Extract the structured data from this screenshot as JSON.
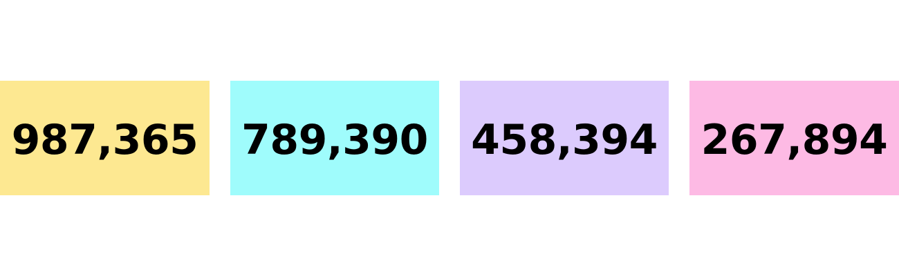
{
  "cards": [
    {
      "value": "987,365",
      "color": "#fde891"
    },
    {
      "value": "789,390",
      "color": "#9ffcfc"
    },
    {
      "value": "458,394",
      "color": "#dccbfd"
    },
    {
      "value": "267,894",
      "color": "#fdbae4"
    }
  ]
}
